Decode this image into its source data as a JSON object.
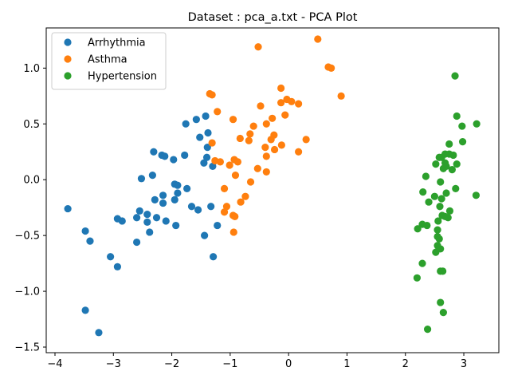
{
  "chart_data": {
    "type": "scatter",
    "title": "Dataset : pca_a.txt - PCA Plot",
    "xlabel": "",
    "ylabel": "",
    "xlim": [
      -4.15,
      3.6
    ],
    "ylim": [
      -1.55,
      1.36
    ],
    "xticks": [
      -4,
      -3,
      -2,
      -1,
      0,
      1,
      2,
      3
    ],
    "xtick_labels": [
      "−4",
      "−3",
      "−2",
      "−1",
      "0",
      "1",
      "2",
      "3"
    ],
    "yticks": [
      -1.5,
      -1.0,
      -0.5,
      0.0,
      0.5,
      1.0
    ],
    "ytick_labels": [
      "−1.5",
      "−1.0",
      "−0.5",
      "0.0",
      "0.5",
      "1.0"
    ],
    "grid": false,
    "legend_position": "top-left",
    "series": [
      {
        "name": "Arrhythmia",
        "color": "#1f77b4",
        "points": [
          [
            -3.78,
            -0.26
          ],
          [
            -3.48,
            -0.46
          ],
          [
            -3.4,
            -0.55
          ],
          [
            -3.48,
            -1.17
          ],
          [
            -3.25,
            -1.37
          ],
          [
            -3.05,
            -0.69
          ],
          [
            -2.93,
            -0.78
          ],
          [
            -2.93,
            -0.35
          ],
          [
            -2.85,
            -0.37
          ],
          [
            -2.6,
            -0.34
          ],
          [
            -2.6,
            -0.56
          ],
          [
            -2.55,
            -0.28
          ],
          [
            -2.52,
            0.01
          ],
          [
            -2.42,
            -0.31
          ],
          [
            -2.42,
            -0.38
          ],
          [
            -2.38,
            -0.47
          ],
          [
            -2.33,
            0.04
          ],
          [
            -2.31,
            0.25
          ],
          [
            -2.29,
            -0.18
          ],
          [
            -2.26,
            -0.34
          ],
          [
            -2.17,
            0.22
          ],
          [
            -2.15,
            -0.21
          ],
          [
            -2.15,
            -0.14
          ],
          [
            -2.12,
            0.21
          ],
          [
            -2.1,
            -0.37
          ],
          [
            -1.97,
            0.18
          ],
          [
            -1.95,
            -0.04
          ],
          [
            -1.95,
            -0.18
          ],
          [
            -1.93,
            -0.41
          ],
          [
            -1.9,
            -0.05
          ],
          [
            -1.9,
            -0.12
          ],
          [
            -1.78,
            0.22
          ],
          [
            -1.76,
            0.5
          ],
          [
            -1.74,
            -0.08
          ],
          [
            -1.66,
            -0.24
          ],
          [
            -1.58,
            0.54
          ],
          [
            -1.55,
            -0.27
          ],
          [
            -1.52,
            0.38
          ],
          [
            -1.45,
            0.15
          ],
          [
            -1.44,
            -0.5
          ],
          [
            -1.42,
            0.57
          ],
          [
            -1.4,
            0.2
          ],
          [
            -1.39,
            0.29
          ],
          [
            -1.38,
            0.42
          ],
          [
            -1.33,
            -0.24
          ],
          [
            -1.3,
            0.12
          ],
          [
            -1.29,
            -0.69
          ],
          [
            -1.22,
            -0.41
          ]
        ]
      },
      {
        "name": "Asthma",
        "color": "#ff7f0e",
        "points": [
          [
            -0.52,
            1.19
          ],
          [
            0.5,
            1.26
          ],
          [
            0.68,
            1.01
          ],
          [
            0.73,
            1.0
          ],
          [
            0.9,
            0.75
          ],
          [
            -1.35,
            0.77
          ],
          [
            -1.31,
            0.76
          ],
          [
            -1.22,
            0.61
          ],
          [
            -0.95,
            0.54
          ],
          [
            -0.48,
            0.66
          ],
          [
            -0.13,
            0.82
          ],
          [
            -0.13,
            0.69
          ],
          [
            -0.03,
            0.72
          ],
          [
            0.05,
            0.7
          ],
          [
            0.17,
            0.68
          ],
          [
            -0.06,
            0.58
          ],
          [
            -0.28,
            0.55
          ],
          [
            -0.38,
            0.5
          ],
          [
            -0.6,
            0.48
          ],
          [
            -0.66,
            0.41
          ],
          [
            -0.83,
            0.37
          ],
          [
            -0.68,
            0.35
          ],
          [
            -0.25,
            0.4
          ],
          [
            -0.3,
            0.36
          ],
          [
            -0.12,
            0.31
          ],
          [
            -0.4,
            0.29
          ],
          [
            -0.24,
            0.27
          ],
          [
            0.3,
            0.36
          ],
          [
            0.17,
            0.25
          ],
          [
            -0.38,
            0.21
          ],
          [
            -1.31,
            0.33
          ],
          [
            -1.26,
            0.17
          ],
          [
            -1.17,
            0.16
          ],
          [
            -1.01,
            0.13
          ],
          [
            -0.93,
            0.18
          ],
          [
            -0.87,
            0.16
          ],
          [
            -0.53,
            0.1
          ],
          [
            -0.38,
            0.07
          ],
          [
            -0.91,
            0.04
          ],
          [
            -0.65,
            -0.02
          ],
          [
            -1.1,
            -0.08
          ],
          [
            -0.74,
            -0.15
          ],
          [
            -0.82,
            -0.2
          ],
          [
            -1.06,
            -0.24
          ],
          [
            -1.1,
            -0.29
          ],
          [
            -0.95,
            -0.32
          ],
          [
            -0.92,
            -0.33
          ],
          [
            -0.94,
            -0.47
          ]
        ]
      },
      {
        "name": "Hypertension",
        "color": "#2ca02c",
        "points": [
          [
            2.85,
            0.93
          ],
          [
            3.22,
            0.5
          ],
          [
            2.88,
            0.57
          ],
          [
            2.97,
            0.48
          ],
          [
            2.98,
            0.34
          ],
          [
            2.75,
            0.32
          ],
          [
            2.68,
            0.23
          ],
          [
            2.75,
            0.23
          ],
          [
            2.82,
            0.22
          ],
          [
            2.62,
            0.2
          ],
          [
            2.58,
            0.2
          ],
          [
            2.52,
            0.14
          ],
          [
            2.68,
            0.15
          ],
          [
            2.88,
            0.14
          ],
          [
            2.7,
            0.12
          ],
          [
            2.65,
            0.1
          ],
          [
            2.8,
            0.09
          ],
          [
            2.35,
            0.03
          ],
          [
            2.6,
            -0.02
          ],
          [
            2.86,
            -0.08
          ],
          [
            2.3,
            -0.11
          ],
          [
            2.7,
            -0.12
          ],
          [
            2.5,
            -0.15
          ],
          [
            3.21,
            -0.14
          ],
          [
            2.62,
            -0.17
          ],
          [
            2.4,
            -0.2
          ],
          [
            2.59,
            -0.24
          ],
          [
            2.76,
            -0.28
          ],
          [
            2.63,
            -0.32
          ],
          [
            2.68,
            -0.33
          ],
          [
            2.73,
            -0.34
          ],
          [
            2.56,
            -0.37
          ],
          [
            2.29,
            -0.4
          ],
          [
            2.37,
            -0.41
          ],
          [
            2.21,
            -0.44
          ],
          [
            2.55,
            -0.45
          ],
          [
            2.55,
            -0.51
          ],
          [
            2.58,
            -0.53
          ],
          [
            2.55,
            -0.59
          ],
          [
            2.6,
            -0.62
          ],
          [
            2.52,
            -0.65
          ],
          [
            2.29,
            -0.75
          ],
          [
            2.6,
            -0.82
          ],
          [
            2.64,
            -0.82
          ],
          [
            2.2,
            -0.88
          ],
          [
            2.6,
            -1.1
          ],
          [
            2.65,
            -1.19
          ],
          [
            2.38,
            -1.34
          ]
        ]
      }
    ]
  }
}
